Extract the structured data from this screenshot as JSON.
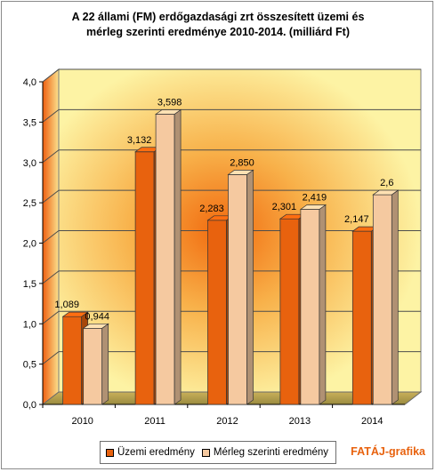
{
  "chart_data": {
    "type": "bar",
    "title_line1": "A 22 állami (FM) erdőgazdasági zrt összesített üzemi és",
    "title_line2": "mérleg szerinti eredménye 2010-2014. (milliárd Ft)",
    "categories": [
      "2010",
      "2011",
      "2012",
      "2013",
      "2014"
    ],
    "series": [
      {
        "name": "Üzemi eredmény",
        "values": [
          1.089,
          3.132,
          2.283,
          2.301,
          2.147
        ],
        "labels": [
          "1,089",
          "3,132",
          "2,283",
          "2,301",
          "2,147"
        ],
        "color": "#e8620e"
      },
      {
        "name": "Mérleg szerinti eredmény",
        "values": [
          0.944,
          3.598,
          2.85,
          2.419,
          2.6
        ],
        "labels": [
          "0,944",
          "3,598",
          "2,850",
          "2,419",
          "2,6"
        ],
        "color": "#f5c9a0"
      }
    ],
    "yticks": [
      "0,0",
      "0,5",
      "1,0",
      "1,5",
      "2,0",
      "2,5",
      "3,0",
      "3,5",
      "4,0"
    ],
    "ylim": [
      0,
      4
    ],
    "grid": true,
    "legend_position": "bottom"
  },
  "credit": {
    "text": "FATÁJ-grafika",
    "color": "#e8620e"
  }
}
